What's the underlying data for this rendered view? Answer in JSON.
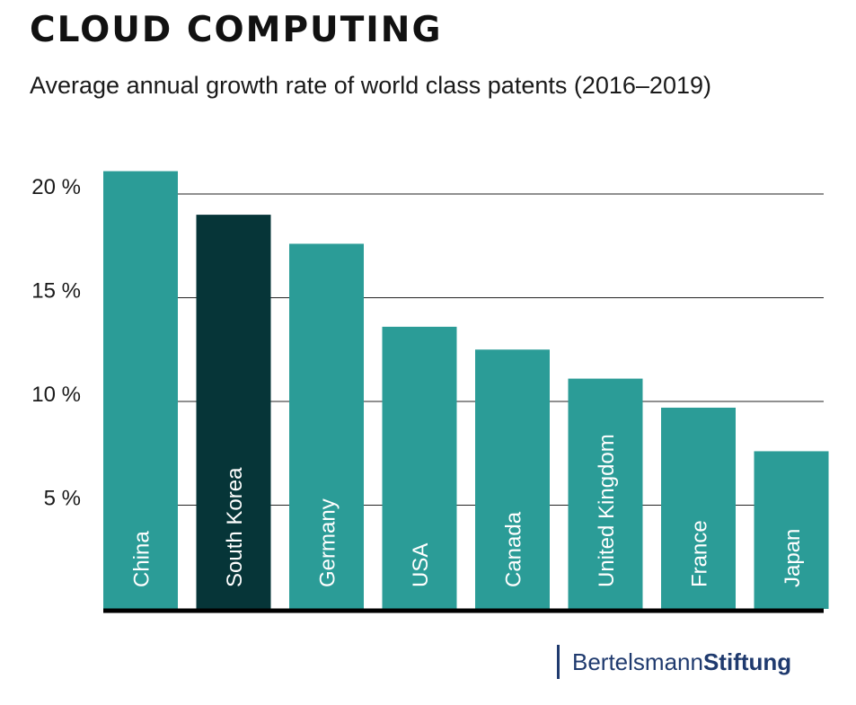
{
  "chart_data": {
    "type": "bar",
    "title": "CLOUD COMPUTING",
    "subtitle": "Average annual growth rate of world class patents (2016–2019)",
    "categories": [
      "China",
      "South Korea",
      "Germany",
      "USA",
      "Canada",
      "United Kingdom",
      "France",
      "Japan"
    ],
    "values": [
      21.1,
      19.0,
      17.6,
      13.6,
      12.5,
      11.1,
      9.7,
      7.6
    ],
    "highlight": "South Korea",
    "ylim": [
      0,
      20
    ],
    "yticks": [
      5,
      10,
      15,
      20
    ],
    "ytick_labels": [
      "5 %",
      "10 %",
      "15 %",
      "20 %"
    ],
    "xlabel": "",
    "ylabel": "",
    "grid": true,
    "colors": {
      "bar": "#2b9c97",
      "highlight": "#063538",
      "grid": "#222222",
      "axis": "#000000"
    }
  },
  "branding": {
    "regular": "Bertelsmann",
    "bold": "Stiftung",
    "color": "#1f3a6e"
  }
}
